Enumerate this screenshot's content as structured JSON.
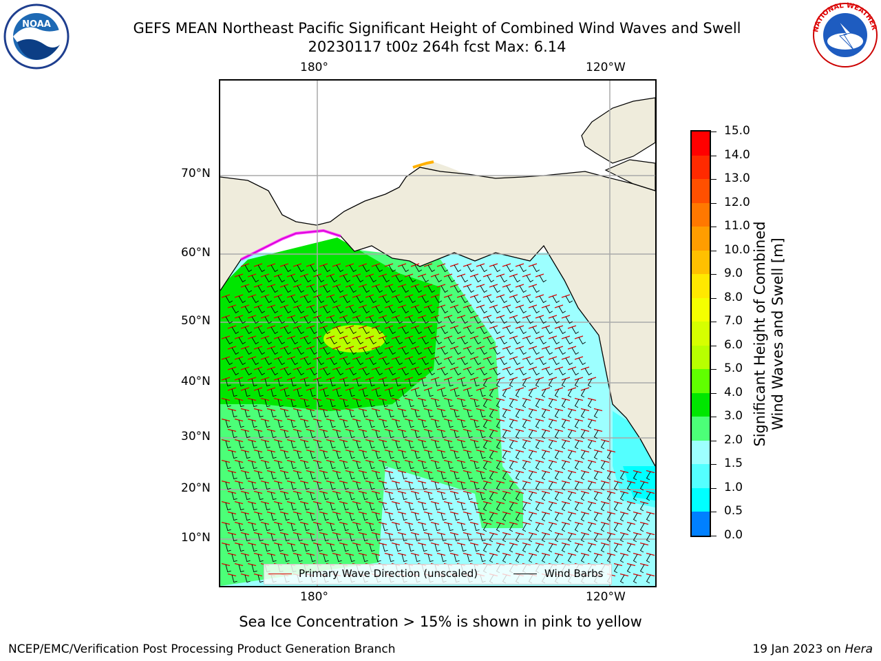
{
  "title": {
    "line1": "GEFS MEAN Northeast Pacific Significant Height of Combined Wind Waves and Swell",
    "line2": "20230117 t00z 264h fcst   Max: 6.14"
  },
  "logos": {
    "left": "noaa-logo",
    "left_text": "NOAA",
    "right": "national-weather-service-logo",
    "right_text": "NATIONAL WEATHER SERVICE"
  },
  "axes": {
    "top_lon_labels": [
      "180°",
      "120°W"
    ],
    "bottom_lon_labels": [
      "180°",
      "120°W"
    ],
    "lat_labels": [
      "70°N",
      "60°N",
      "50°N",
      "40°N",
      "30°N",
      "20°N",
      "10°N"
    ]
  },
  "colorbar": {
    "title_line1": "Significant Height of Combined",
    "title_line2": "Wind Waves and Swell [m]",
    "ticks": [
      "15.0",
      "14.0",
      "13.0",
      "12.0",
      "11.0",
      "10.0",
      "9.0",
      "8.0",
      "7.0",
      "6.0",
      "5.0",
      "4.0",
      "3.0",
      "2.0",
      "1.5",
      "1.0",
      "0.5",
      "0.0"
    ],
    "colors": [
      "#ff0000",
      "#ff2a00",
      "#ff5000",
      "#ff7800",
      "#ff9d00",
      "#ffc000",
      "#ffe800",
      "#f4ff00",
      "#d6ff00",
      "#b8ff00",
      "#60ff00",
      "#00e600",
      "#4cff78",
      "#9dffff",
      "#54ffff",
      "#00ffff",
      "#0080ff",
      "#0000ff"
    ]
  },
  "legend": {
    "wave_direction": "Primary Wave Direction (unscaled)",
    "wind_barbs": "Wind Barbs",
    "wave_color": "#dd0000",
    "barb_color": "#000000"
  },
  "notes": {
    "sea_ice": "Sea Ice Concentration > 15% is shown in pink to yellow"
  },
  "footer": {
    "left": "NCEP/EMC/Verification Post Processing Product Generation Branch",
    "right_date": "19 Jan 2023 on ",
    "right_host": "Hera"
  }
}
